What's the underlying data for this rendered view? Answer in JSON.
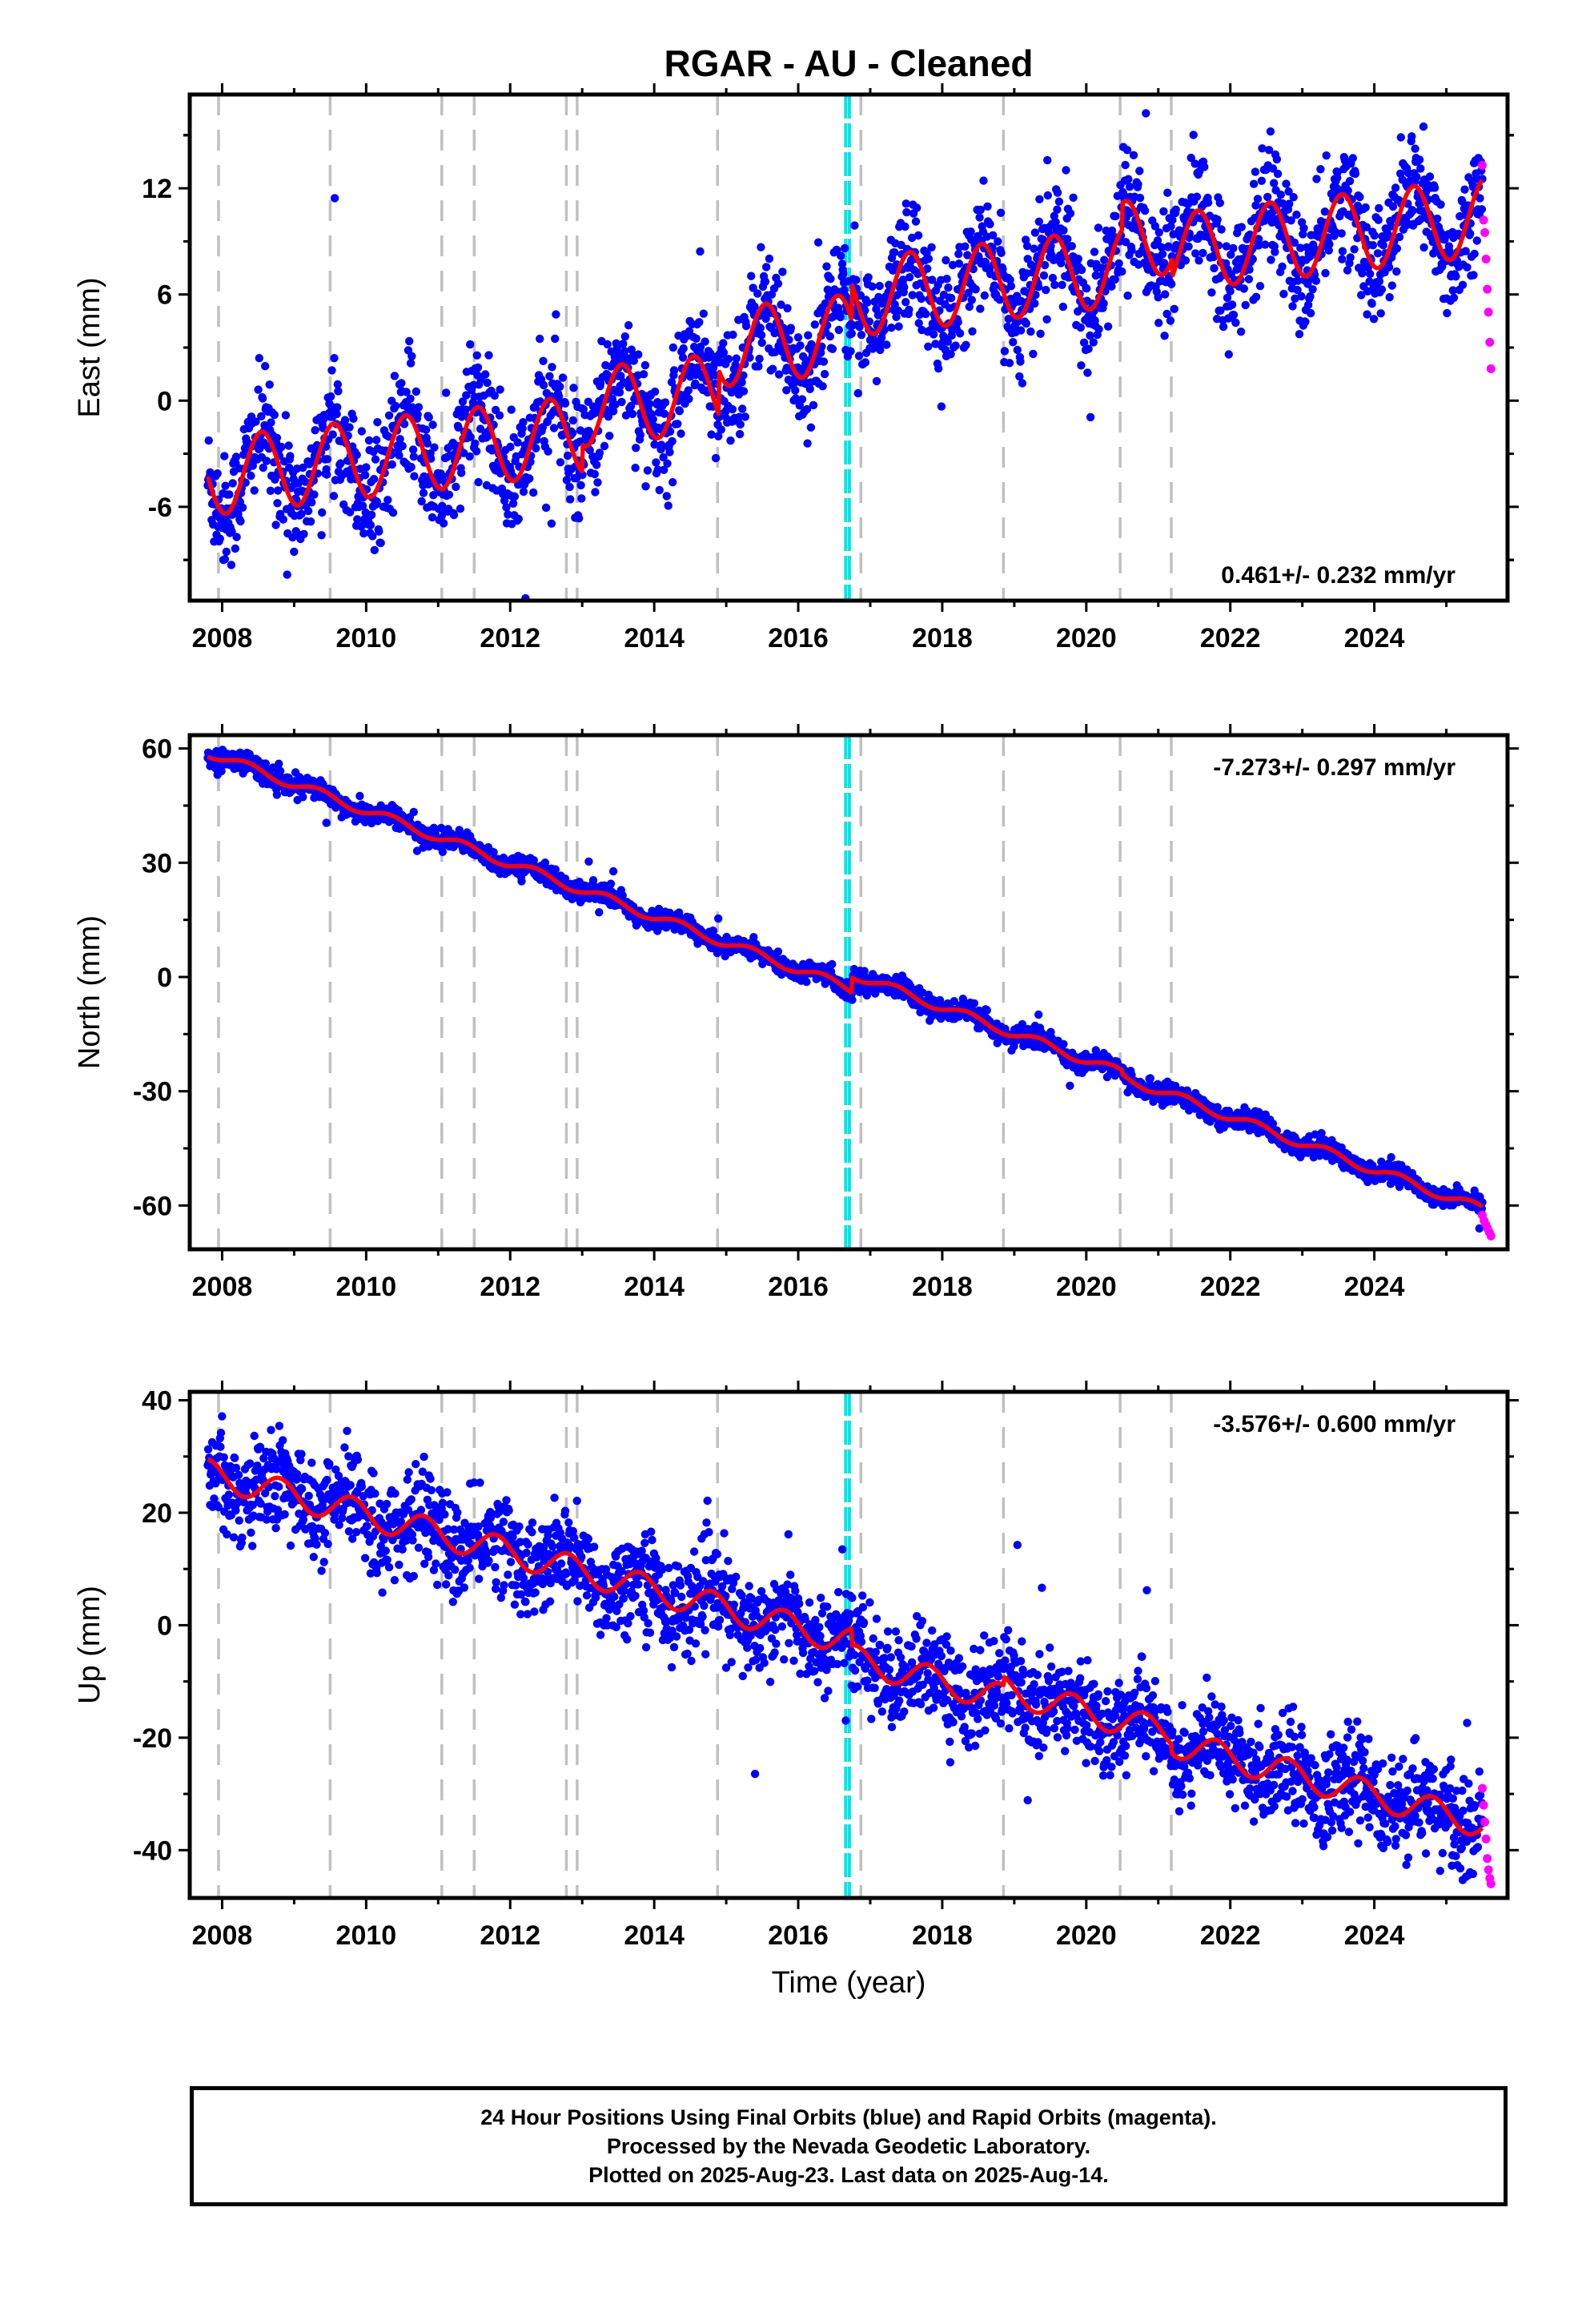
{
  "title": "RGAR  - AU - Cleaned",
  "footer": {
    "line1": "24 Hour Positions Using Final Orbits (blue) and Rapid Orbits (magenta).",
    "line2": "Processed by the Nevada Geodetic Laboratory.",
    "line3": "Plotted on 2025-Aug-23. Last data on 2025-Aug-14."
  },
  "colors": {
    "final_orbits": "#0000ff",
    "rapid_orbits": "#ff00ff",
    "model": "#ff0000",
    "equipment_change": "#c0c0c0",
    "event": "#00e5e5"
  },
  "chart_data": [
    {
      "type": "scatter",
      "ylabel": "East (mm)",
      "xlabel": "",
      "rate": "0.461+/- 0.232 mm/yr",
      "rate_position": "bottom-right",
      "xlim": [
        2007.55,
        2025.85
      ],
      "ylim": [
        -11.3,
        17.3
      ],
      "xticks": [
        2008,
        2010,
        2012,
        2014,
        2016,
        2018,
        2020,
        2022,
        2024
      ],
      "yticks": [
        -6,
        0,
        6,
        12
      ],
      "trend": {
        "start_year": 2007.8,
        "start_value": -4.3,
        "slope": 0.461
      },
      "seasonal": {
        "amplitude": 2.2,
        "phase": 0.3
      },
      "offsets": [
        {
          "year": 2013.0,
          "value": 1.5
        },
        {
          "year": 2014.9,
          "value": 2.5
        },
        {
          "year": 2016.75,
          "value": 2.0
        },
        {
          "year": 2020.5,
          "value": 1.5
        },
        {
          "year": 2021.2,
          "value": -1.0
        }
      ],
      "scatter_sd": 1.6,
      "series": [
        {
          "name": "Final Orbits",
          "x_range": [
            2007.8,
            2025.5
          ]
        },
        {
          "name": "Rapid Orbits",
          "x_range": [
            2025.5,
            2025.62
          ],
          "values": [
            13.3,
            10.2,
            9.5,
            8.0,
            6.3,
            5.0,
            3.3,
            1.8
          ]
        }
      ],
      "equipment_changes": [
        2007.95,
        2009.5,
        2011.05,
        2011.5,
        2012.78,
        2012.93,
        2014.88,
        2018.85,
        2020.47,
        2021.18,
        2016.87
      ],
      "event_lines": [
        2016.66,
        2016.71
      ]
    },
    {
      "type": "scatter",
      "ylabel": "North (mm)",
      "xlabel": "",
      "rate": "-7.273+/- 0.297 mm/yr",
      "rate_position": "top-right",
      "xlim": [
        2007.55,
        2025.85
      ],
      "ylim": [
        -71.5,
        63.5
      ],
      "xticks": [
        2008,
        2010,
        2012,
        2014,
        2016,
        2018,
        2020,
        2022,
        2024
      ],
      "yticks": [
        -60,
        -30,
        0,
        30,
        60
      ],
      "trend": {
        "start_year": 2007.8,
        "start_value": 59.0,
        "slope": -6.95
      },
      "seasonal": {
        "amplitude": 1.2,
        "phase": 0.1
      },
      "offsets": [
        {
          "year": 2016.75,
          "value": 4.0
        },
        {
          "year": 2020.5,
          "value": -1.0
        }
      ],
      "scatter_sd": 1.3,
      "series": [
        {
          "name": "Final Orbits",
          "x_range": [
            2007.8,
            2025.5
          ]
        },
        {
          "name": "Rapid Orbits",
          "x_range": [
            2025.5,
            2025.62
          ],
          "values": [
            -62.5,
            -64.0,
            -65.0,
            -66.0,
            -67.0,
            -68.0
          ]
        }
      ],
      "equipment_changes": [
        2007.95,
        2009.5,
        2011.05,
        2011.5,
        2012.78,
        2012.93,
        2014.88,
        2018.85,
        2020.47,
        2021.18,
        2016.87
      ],
      "event_lines": [
        2016.66,
        2016.71
      ]
    },
    {
      "type": "scatter",
      "ylabel": "Up (mm)",
      "xlabel": "Time (year)",
      "rate": "-3.576+/- 0.600 mm/yr",
      "rate_position": "top-right",
      "xlim": [
        2007.55,
        2025.85
      ],
      "ylim": [
        -48.5,
        41.5
      ],
      "xticks": [
        2008,
        2010,
        2012,
        2014,
        2016,
        2018,
        2020,
        2022,
        2024
      ],
      "yticks": [
        -40,
        -20,
        0,
        20,
        40
      ],
      "trend": {
        "start_year": 2007.8,
        "start_value": 27.0,
        "slope": -3.35
      },
      "seasonal": {
        "amplitude": 2.5,
        "phase": 0.55
      },
      "offsets": [
        {
          "year": 2016.75,
          "value": -3.0
        },
        {
          "year": 2018.85,
          "value": 1.5
        },
        {
          "year": 2021.18,
          "value": -1.5
        }
      ],
      "scatter_sd": 4.2,
      "series": [
        {
          "name": "Final Orbits",
          "x_range": [
            2007.8,
            2025.5
          ]
        },
        {
          "name": "Rapid Orbits",
          "x_range": [
            2025.5,
            2025.62
          ],
          "values": [
            -29.0,
            -32.0,
            -35.0,
            -38.0,
            -41.5,
            -43.5,
            -45.0,
            -46.0
          ]
        }
      ],
      "equipment_changes": [
        2007.95,
        2009.5,
        2011.05,
        2011.5,
        2012.78,
        2012.93,
        2014.88,
        2018.85,
        2020.47,
        2021.18,
        2016.87
      ],
      "event_lines": [
        2016.66,
        2016.71
      ]
    }
  ]
}
